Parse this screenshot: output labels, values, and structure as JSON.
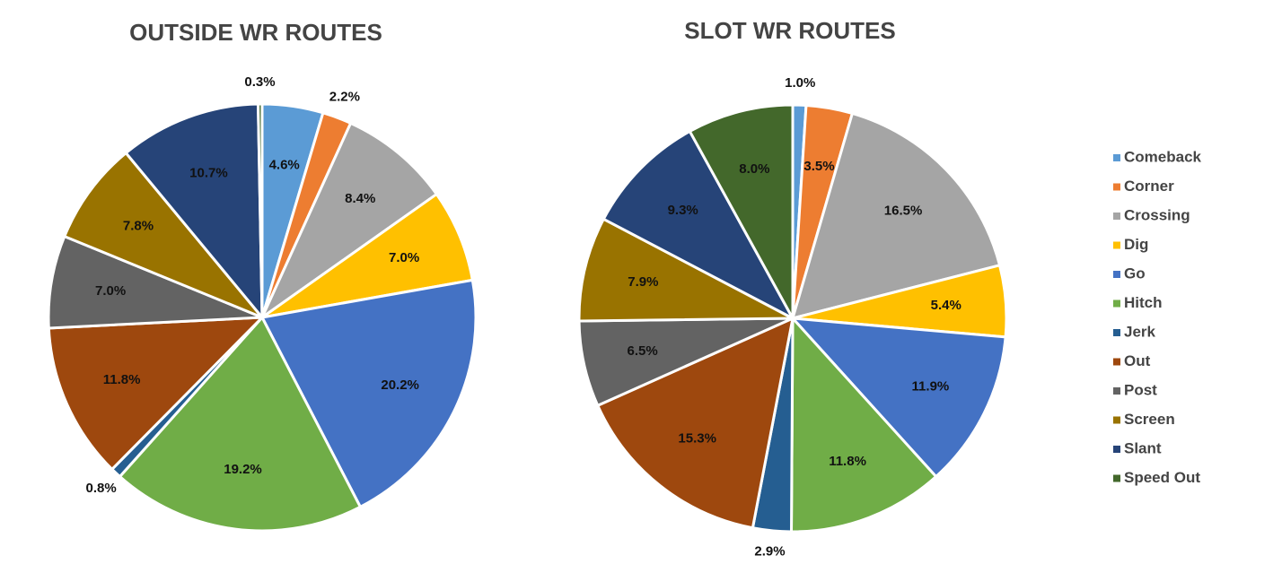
{
  "chart_data": [
    {
      "type": "pie",
      "title": "OUTSIDE WR ROUTES",
      "categories": [
        "Comeback",
        "Corner",
        "Crossing",
        "Dig",
        "Go",
        "Hitch",
        "Jerk",
        "Out",
        "Post",
        "Screen",
        "Slant",
        "Speed Out"
      ],
      "values": [
        4.6,
        2.2,
        8.4,
        7.0,
        20.2,
        19.2,
        0.8,
        11.8,
        7.0,
        7.8,
        10.7,
        0.3
      ],
      "value_labels": [
        "4.6%",
        "2.2%",
        "8.4%",
        "7.0%",
        "20.2%",
        "19.2%",
        "0.8%",
        "11.8%",
        "7.0%",
        "7.8%",
        "10.7%",
        "0.3%"
      ],
      "colors": [
        "#5b9bd5",
        "#ed7d31",
        "#a5a5a5",
        "#ffc000",
        "#4472c4",
        "#70ad47",
        "#255e91",
        "#9e480e",
        "#636363",
        "#997300",
        "#264478",
        "#43682b"
      ]
    },
    {
      "type": "pie",
      "title": "SLOT WR ROUTES",
      "categories": [
        "Comeback",
        "Corner",
        "Crossing",
        "Dig",
        "Go",
        "Hitch",
        "Jerk",
        "Out",
        "Post",
        "Screen",
        "Slant",
        "Speed Out"
      ],
      "values": [
        1.0,
        3.5,
        16.5,
        5.4,
        11.9,
        11.8,
        2.9,
        15.3,
        6.5,
        7.9,
        9.3,
        8.0
      ],
      "value_labels": [
        "1.0%",
        "3.5%",
        "16.5%",
        "5.4%",
        "11.9%",
        "11.8%",
        "2.9%",
        "15.3%",
        "6.5%",
        "7.9%",
        "9.3%",
        "8.0%"
      ],
      "colors": [
        "#5b9bd5",
        "#ed7d31",
        "#a5a5a5",
        "#ffc000",
        "#4472c4",
        "#70ad47",
        "#255e91",
        "#9e480e",
        "#636363",
        "#997300",
        "#264478",
        "#43682b"
      ],
      "legend": "right"
    }
  ]
}
